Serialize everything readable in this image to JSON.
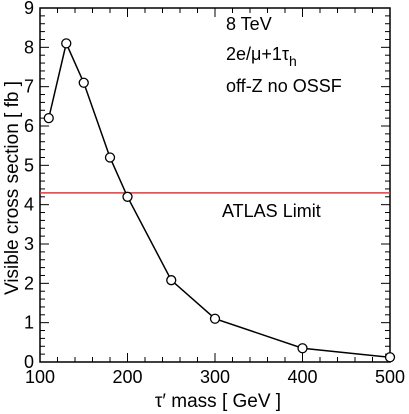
{
  "chart_data": {
    "type": "line",
    "xlabel": "τ′ mass  [ GeV ]",
    "ylabel": "Visible cross section  [ fb ]",
    "xlim": [
      100,
      500
    ],
    "ylim": [
      0,
      9
    ],
    "x_ticks": [
      100,
      200,
      300,
      400,
      500
    ],
    "y_ticks": [
      0,
      1,
      2,
      3,
      4,
      5,
      6,
      7,
      8,
      9
    ],
    "series": [
      {
        "x": [
          110,
          130,
          150,
          180,
          200,
          250,
          300,
          400,
          500
        ],
        "y": [
          6.2,
          8.1,
          7.1,
          5.2,
          4.2,
          2.08,
          1.1,
          0.35,
          0.12
        ],
        "color": "#000000",
        "marker": "open-circle"
      }
    ],
    "limit_line": {
      "y": 4.3,
      "label": "ATLAS Limit",
      "color": "#e8383b"
    },
    "annotations": {
      "energy": "8 TeV",
      "channel_main": "2e/μ+1τ",
      "channel_sub": "h",
      "selection": "off-Z no OSSF"
    }
  }
}
